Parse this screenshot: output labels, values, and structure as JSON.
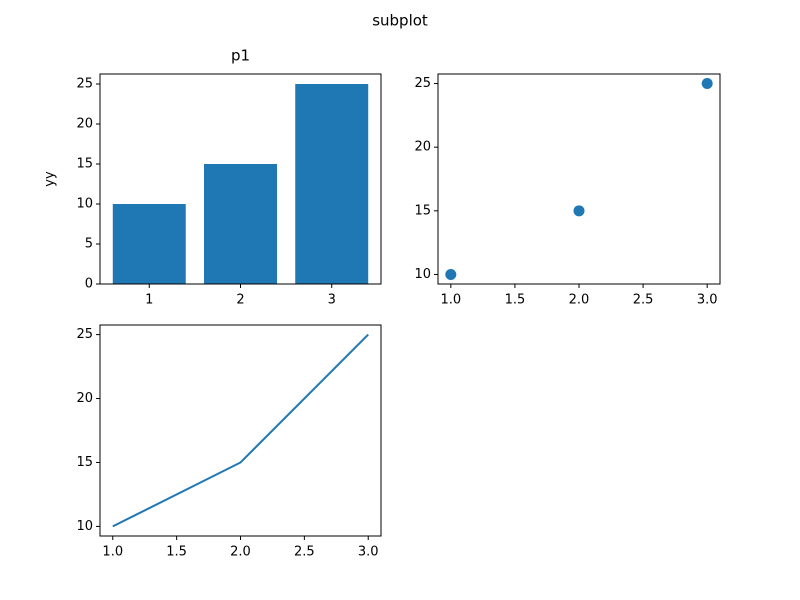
{
  "title": "subplot",
  "chart_data": [
    {
      "type": "bar",
      "title": "p1",
      "ylabel": "yy",
      "color": "#1f77b4",
      "x": [
        1,
        2,
        3
      ],
      "values": [
        10,
        15,
        25
      ],
      "xlim": [
        0.46,
        3.54
      ],
      "xticks": [
        1,
        2,
        3
      ],
      "ylim": [
        0,
        26.25
      ],
      "yticks": [
        0,
        5,
        10,
        15,
        20,
        25
      ]
    },
    {
      "type": "scatter",
      "color": "#1f77b4",
      "x": [
        1,
        2,
        3
      ],
      "values": [
        10,
        15,
        25
      ],
      "xlim": [
        0.9,
        3.1
      ],
      "xticks": [
        {
          "value": 1,
          "label": "1.0"
        },
        1.5,
        {
          "value": 2,
          "label": "2.0"
        },
        2.5,
        {
          "value": 3,
          "label": "3.0"
        }
      ],
      "ylim": [
        9.25,
        25.75
      ],
      "yticks": [
        10,
        15,
        20,
        25
      ]
    },
    {
      "type": "line",
      "color": "#1f77b4",
      "x": [
        1,
        2,
        3
      ],
      "values": [
        10,
        15,
        25
      ],
      "xlim": [
        0.9,
        3.1
      ],
      "xticks": [
        {
          "value": 1,
          "label": "1.0"
        },
        1.5,
        {
          "value": 2,
          "label": "2.0"
        },
        2.5,
        {
          "value": 3,
          "label": "3.0"
        }
      ],
      "ylim": [
        9.25,
        25.75
      ],
      "yticks": [
        10,
        15,
        20,
        25
      ]
    }
  ]
}
